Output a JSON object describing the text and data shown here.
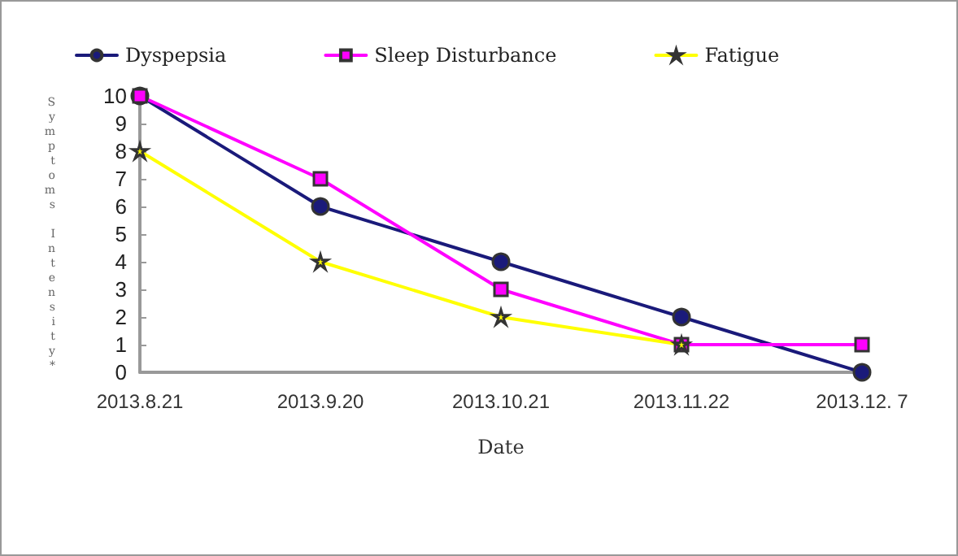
{
  "chart_data": {
    "type": "line",
    "xlabel": "Date",
    "ylabel": "Symptoms Intensity*",
    "categories": [
      "2013.8.21",
      "2013.9.20",
      "2013.10.21",
      "2013.11.22",
      "2013.12. 7"
    ],
    "series": [
      {
        "name": "Dyspepsia",
        "color": "#1a1a7a",
        "marker": "circle",
        "values": [
          10,
          6,
          4,
          2,
          0
        ]
      },
      {
        "name": "Sleep Disturbance",
        "color": "#ff00ff",
        "marker": "square",
        "values": [
          10,
          7,
          3,
          1,
          1
        ]
      },
      {
        "name": "Fatigue",
        "color": "#ffff00",
        "marker": "star",
        "values": [
          8,
          4,
          2,
          1,
          null
        ]
      }
    ],
    "ylim": [
      0,
      10
    ],
    "yticks": [
      0,
      1,
      2,
      3,
      4,
      5,
      6,
      7,
      8,
      9,
      10
    ],
    "grid": false,
    "legend": "top",
    "line_style": "solid"
  }
}
